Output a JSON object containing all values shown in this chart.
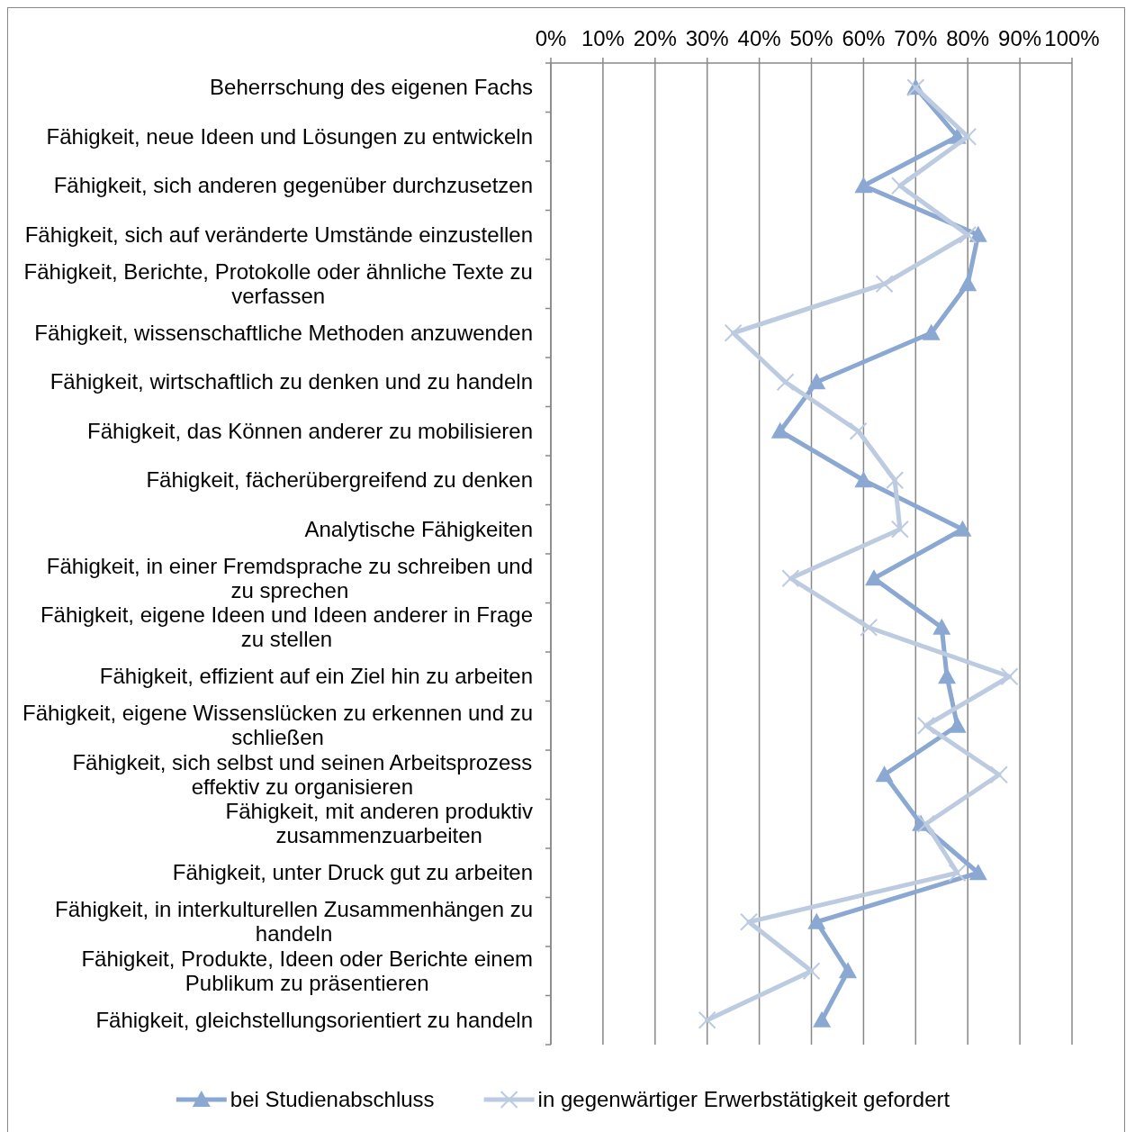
{
  "chart_data": {
    "type": "line",
    "orientation": "horizontal",
    "categories": [
      "Beherrschung des eigenen Fachs",
      "Fähigkeit, neue Ideen und Lösungen zu entwickeln",
      "Fähigkeit, sich anderen gegenüber durchzusetzen",
      "Fähigkeit, sich auf veränderte Umstände einzustellen",
      "Fähigkeit, Berichte, Protokolle oder ähnliche Texte zu verfassen",
      "Fähigkeit, wissenschaftliche Methoden anzuwenden",
      "Fähigkeit, wirtschaftlich zu denken und zu handeln",
      "Fähigkeit, das Können anderer zu mobilisieren",
      "Fähigkeit, fächerübergreifend zu denken",
      "Analytische Fähigkeiten",
      "Fähigkeit, in einer Fremdsprache zu schreiben und zu sprechen",
      "Fähigkeit, eigene Ideen und Ideen anderer in Frage zu stellen",
      "Fähigkeit, effizient auf ein Ziel hin zu arbeiten",
      "Fähigkeit, eigene Wissenslücken zu erkennen und zu schließen",
      "Fähigkeit, sich selbst und seinen Arbeitsprozess effektiv zu organisieren",
      "Fähigkeit, mit anderen produktiv zusammenzuarbeiten",
      "Fähigkeit, unter Druck gut zu arbeiten",
      "Fähigkeit, in interkulturellen Zusammenhängen zu handeln",
      "Fähigkeit, Produkte, Ideen oder Berichte einem Publikum zu präsentieren",
      "Fähigkeit, gleichstellungsorientiert zu handeln"
    ],
    "series": [
      {
        "name": "bei Studienabschluss",
        "color": "#8aa8d2",
        "marker": "triangle",
        "values": [
          70,
          78,
          60,
          82,
          80,
          73,
          51,
          44,
          60,
          79,
          62,
          75,
          76,
          78,
          64,
          71,
          82,
          51,
          57,
          52
        ]
      },
      {
        "name": "in gegenwärtiger Erwerbstätigkeit gefordert",
        "color": "#bccbe0",
        "marker": "cross",
        "values": [
          70,
          80,
          67,
          80,
          64,
          35,
          45,
          59,
          66,
          67,
          46,
          61,
          88,
          72,
          86,
          72,
          78,
          38,
          50,
          30
        ]
      }
    ],
    "xlim": [
      0,
      100
    ],
    "xticks": [
      {
        "value": 0,
        "label": "0%"
      },
      {
        "value": 10,
        "label": "10%"
      },
      {
        "value": 20,
        "label": "20%"
      },
      {
        "value": 30,
        "label": "30%"
      },
      {
        "value": 40,
        "label": "40%"
      },
      {
        "value": 50,
        "label": "50%"
      },
      {
        "value": 60,
        "label": "60%"
      },
      {
        "value": 70,
        "label": "70%"
      },
      {
        "value": 80,
        "label": "80%"
      },
      {
        "value": 90,
        "label": "90%"
      },
      {
        "value": 100,
        "label": "100%"
      }
    ],
    "grid": "x",
    "legend": "bottom",
    "line_style": "solid"
  }
}
